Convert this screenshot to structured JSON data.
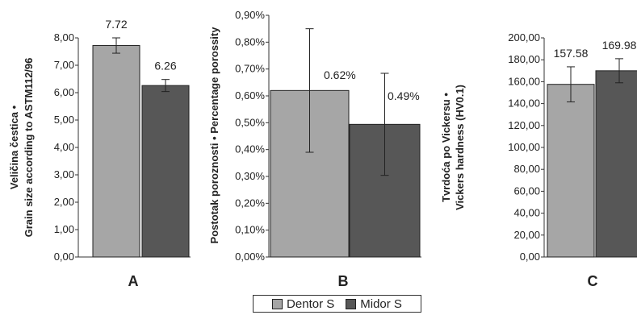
{
  "colors": {
    "dentor": "#a6a6a6",
    "midor": "#575757",
    "axis": "#333333",
    "errorbar": "#222222"
  },
  "legend": {
    "placement": "bottom-center",
    "dentor_label": "Dentor S",
    "midor_label": "Midor S"
  },
  "chart_data": [
    {
      "type": "bar",
      "panel_label": "A",
      "ylabel_line1": "Veličina čestica •",
      "ylabel_line2": "Grain size according to ASTM112/96",
      "ylim": [
        0,
        8
      ],
      "yticks": [
        "0,00",
        "1,00",
        "2,00",
        "3,00",
        "4,00",
        "5,00",
        "6,00",
        "7,00",
        "8,00"
      ],
      "series": [
        {
          "name": "Dentor S",
          "value": 7.72,
          "error": 0.28,
          "label": "7.72"
        },
        {
          "name": "Midor S",
          "value": 6.26,
          "error": 0.22,
          "label": "6.26"
        }
      ]
    },
    {
      "type": "bar",
      "panel_label": "B",
      "ylabel_line1": "Postotak poroznosti • Percentage porossity",
      "ylabel_line2": "",
      "ylim": [
        0,
        0.9
      ],
      "yticks": [
        "0,00%",
        "0,10%",
        "0,20%",
        "0,30%",
        "0,40%",
        "0,50%",
        "0,60%",
        "0,70%",
        "0,80%",
        "0,90%"
      ],
      "series": [
        {
          "name": "Dentor S",
          "value": 0.62,
          "error": 0.23,
          "label": "0.62%"
        },
        {
          "name": "Midor S",
          "value": 0.494,
          "error": 0.19,
          "label": "0.49%"
        }
      ]
    },
    {
      "type": "bar",
      "panel_label": "C",
      "ylabel_line1": "Tvrdoća po Vickersu •",
      "ylabel_line2": "Vickers hardness (HV0.1)",
      "ylim": [
        0,
        200
      ],
      "yticks": [
        "0,00",
        "20,00",
        "40,00",
        "60,00",
        "80,00",
        "100,00",
        "120,00",
        "140,00",
        "160,00",
        "180,00",
        "200,00"
      ],
      "series": [
        {
          "name": "Dentor S",
          "value": 157.58,
          "error": 16,
          "label": "157.58"
        },
        {
          "name": "Midor S",
          "value": 169.98,
          "error": 11,
          "label": "169.98"
        }
      ]
    }
  ]
}
